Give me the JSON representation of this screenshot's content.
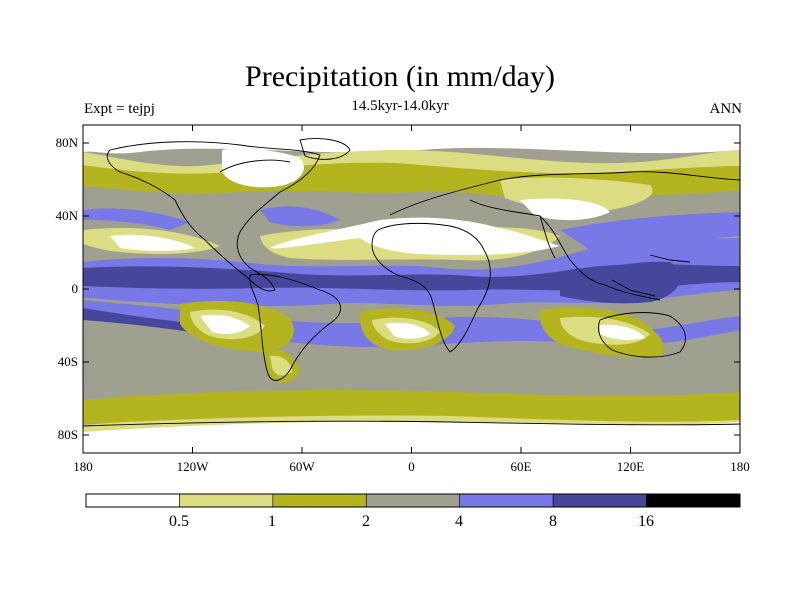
{
  "figure": {
    "title": "Precipitation (in mm/day)",
    "subtitle": "14.5kyr-14.0kyr",
    "left_label": "Expt = tejpj",
    "right_label": "ANN"
  },
  "axes": {
    "lat_ticks": [
      "80N",
      "40N",
      "0",
      "40S",
      "80S"
    ],
    "lon_ticks": [
      "180",
      "120W",
      "60W",
      "0",
      "60E",
      "120E",
      "180"
    ]
  },
  "colorbar": {
    "levels": [
      "0.5",
      "1",
      "2",
      "4",
      "8",
      "16"
    ],
    "colors": [
      "#ffffff",
      "#dcdc82",
      "#b4b41e",
      "#a0a090",
      "#7878e6",
      "#46469a",
      "#000000"
    ]
  }
}
